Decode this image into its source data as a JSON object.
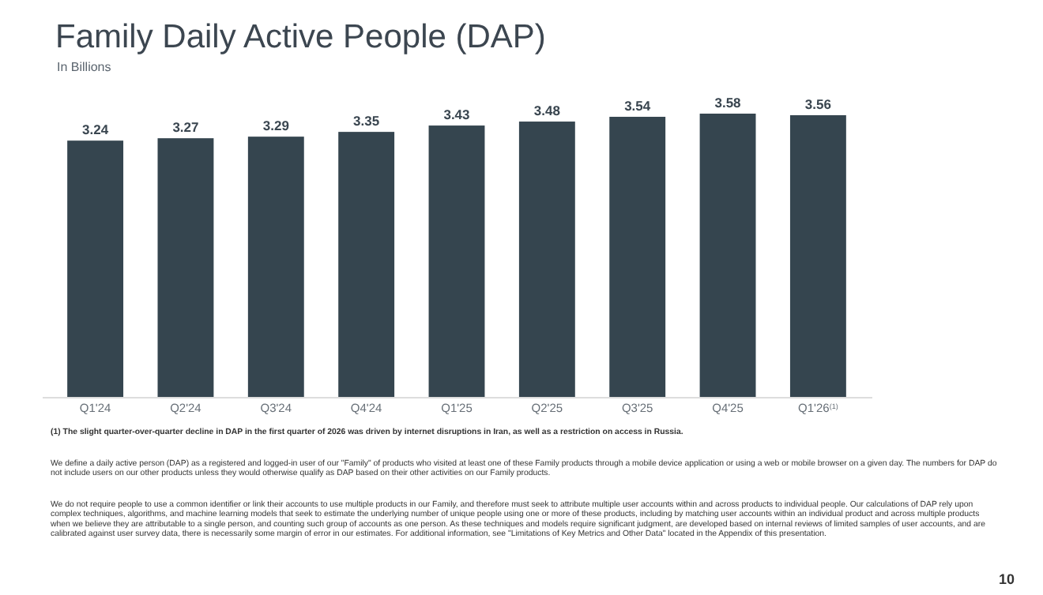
{
  "chart_data": {
    "type": "bar",
    "title": "Family Daily Active People (DAP)",
    "subtitle": "In Billions",
    "categories": [
      "Q1'24",
      "Q2'24",
      "Q3'24",
      "Q4'24",
      "Q1'25",
      "Q2'25",
      "Q3'25",
      "Q4'25",
      "Q1'26$^{(1)}$"
    ],
    "values": [
      3.24,
      3.27,
      3.29,
      3.35,
      3.43,
      3.48,
      3.54,
      3.58,
      3.56
    ],
    "color": "#35454f",
    "data_labels": true,
    "grid": false,
    "annotations": [
      "(1) The slight quarter-over-quarter decline in DAP in the first quarter of 2026 was driven by internet disruptions in Iran, as well as a restriction on access in Russia.",
      "We define a daily active person (DAP) as a registered and logged-in user of our \"Family\" of products who visited at least one of these Family products through a mobile device application or using a web or mobile browser on a given day. The numbers for DAP do not include users on our other products unless they would otherwise qualify as DAP based on their other activities on our Family products.",
      "We do not require people to use a common identifier or link their accounts to use multiple products in our Family, and therefore must seek to attribute multiple user accounts within and across products to individual people. Our calculations of DAP rely upon complex techniques, algorithms, and machine learning models that seek to estimate the underlying number of unique people using one or more of these products, including by matching user accounts within an individual product and across multiple products when we believe they are attributable to a single person, and counting such group of accounts as one person. As these techniques and models require significant judgment, are developed based on internal reviews of limited samples of user accounts, and are calibrated against user survey data, there is necessarily some margin of error in our estimates. For additional information, see \"Limitations of Key Metrics and Other Data\" located in the Appendix of this presentation.",
      "10"
    ]
  }
}
